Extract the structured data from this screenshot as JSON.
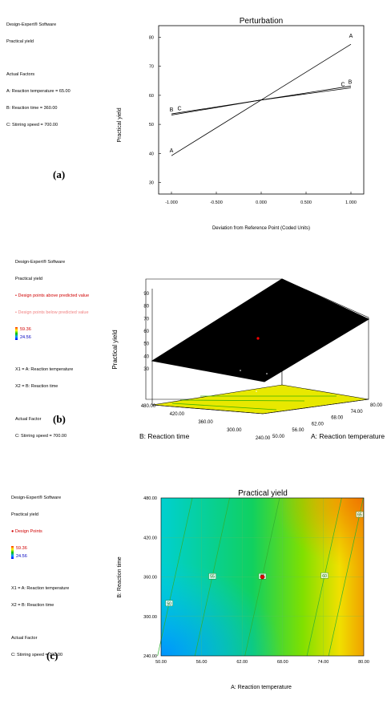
{
  "panels": [
    {
      "label": "(a)",
      "info": {
        "software": "Design-Expert® Software",
        "response": "Practical yield",
        "factors_title": "Actual Factors",
        "factors": [
          "A: Reaction temperature = 65.00",
          "B: Reaction time = 360.00",
          "C: Stirring speed = 700.00"
        ]
      }
    },
    {
      "label": "(b)",
      "info": {
        "software": "Design-Expert® Software",
        "response": "Practical yield",
        "legend_above": "Design points above predicted value",
        "legend_below": "Design points below predicted value",
        "scale_max": "59.36",
        "scale_min": "24.56",
        "x1": "X1 = A: Reaction temperature",
        "x2": "X2 = B: Reaction time",
        "factor_title": "Actual Factor",
        "factor": "C: Stirring speed = 700.00"
      }
    },
    {
      "label": "(c)",
      "info": {
        "software": "Design-Expert® Software",
        "response": "Practical yield",
        "legend_points": "Design Points",
        "scale_max": "59.36",
        "scale_min": "24.56",
        "x1": "X1 = A: Reaction temperature",
        "x2": "X2 = B: Reaction time",
        "factor_title": "Actual Factor",
        "factor": "C: Stirring speed = 700.00"
      }
    }
  ],
  "chart_data": [
    {
      "type": "line",
      "title": "Perturbation",
      "xlabel": "Deviation from Reference Point (Coded Units)",
      "ylabel": "Practical yield",
      "xlim": [
        -1,
        1
      ],
      "ylim": [
        26,
        84
      ],
      "x_ticks": [
        -1,
        -0.5,
        0,
        0.5,
        1
      ],
      "x_tick_labels": [
        "-1.000",
        "-0.500",
        "0.000",
        "0.500",
        "1.000"
      ],
      "y_ticks": [
        30,
        40,
        50,
        60,
        70,
        80
      ],
      "y_tick_labels": [
        "30",
        "40",
        "50",
        "60",
        "70",
        "80"
      ],
      "series": [
        {
          "name": "A",
          "x": [
            -1,
            0,
            1
          ],
          "y": [
            39.2,
            58.4,
            77.6
          ]
        },
        {
          "name": "B",
          "x": [
            -1,
            0,
            1
          ],
          "y": [
            53.6,
            58.4,
            63.2
          ]
        },
        {
          "name": "C",
          "x": [
            -1,
            0,
            1
          ],
          "y": [
            53.2,
            58.4,
            62.6
          ]
        }
      ]
    },
    {
      "type": "surface",
      "title": "",
      "xlabel": "A: Reaction temperature",
      "ylabel": "B: Reaction time",
      "zlabel": "Practical yield",
      "x_ticks": [
        "50.00",
        "56.00",
        "62.00",
        "68.00",
        "74.00",
        "80.00"
      ],
      "y_ticks": [
        "240.00",
        "300.00",
        "360.00",
        "420.00",
        "480.00"
      ],
      "z_ticks": [
        "30",
        "40",
        "50",
        "60",
        "70",
        "80",
        "90"
      ]
    },
    {
      "type": "contour",
      "title": "Practical yield",
      "xlabel": "A: Reaction temperature",
      "ylabel": "B: Reaction time",
      "xlim": [
        50,
        80
      ],
      "ylim": [
        240,
        480
      ],
      "x_tick_labels": [
        "50.00",
        "56.00",
        "62.00",
        "68.00",
        "74.00",
        "80.00"
      ],
      "y_tick_labels": [
        "240.00",
        "300.00",
        "360.00",
        "420.00",
        "480.00"
      ],
      "contour_labels": [
        {
          "text": "50",
          "x": 51.2,
          "y": 320
        },
        {
          "text": "55",
          "x": 57.6,
          "y": 361
        },
        {
          "text": "55",
          "x": 65.0,
          "y": 361
        },
        {
          "text": "60",
          "x": 74.2,
          "y": 362
        },
        {
          "text": "65",
          "x": 79.4,
          "y": 455
        }
      ],
      "center_point": {
        "x": 65,
        "y": 360
      }
    }
  ]
}
